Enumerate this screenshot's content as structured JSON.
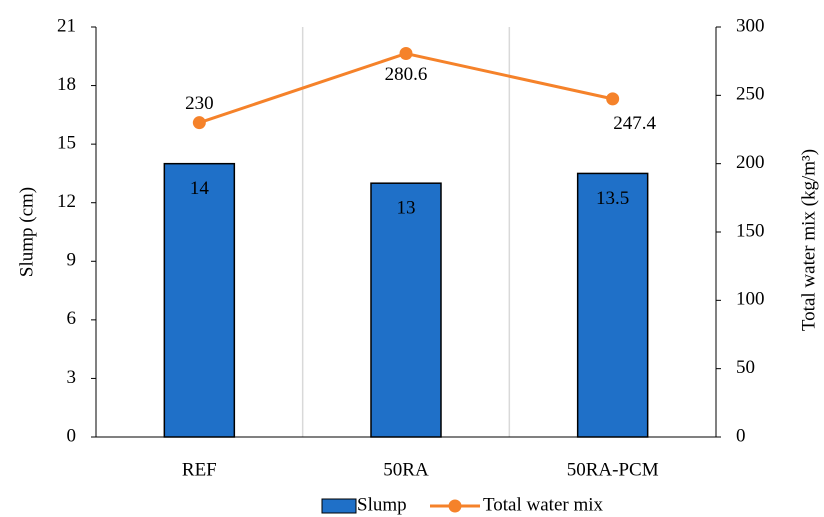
{
  "chart_data": {
    "type": "bar",
    "categories": [
      "REF",
      "50RA",
      "50RA-PCM"
    ],
    "series": [
      {
        "name": "Slump",
        "type": "bar",
        "color": "#1f70c8",
        "values": [
          14,
          13,
          13.5
        ]
      },
      {
        "name": "Total water mix",
        "type": "line",
        "axis": "y2",
        "color": "#f5822a",
        "values": [
          230,
          280.6,
          247.4
        ]
      }
    ],
    "ylabel": "Slump (cm)",
    "y2label": "Total water mix (kg/m³)",
    "ylim": [
      0,
      21
    ],
    "yticks": [
      0,
      3,
      6,
      9,
      12,
      15,
      18,
      21
    ],
    "y2lim": [
      0,
      300
    ],
    "y2ticks": [
      0,
      50,
      100,
      150,
      200,
      250,
      300
    ],
    "grid": true,
    "legend": "bottom"
  }
}
